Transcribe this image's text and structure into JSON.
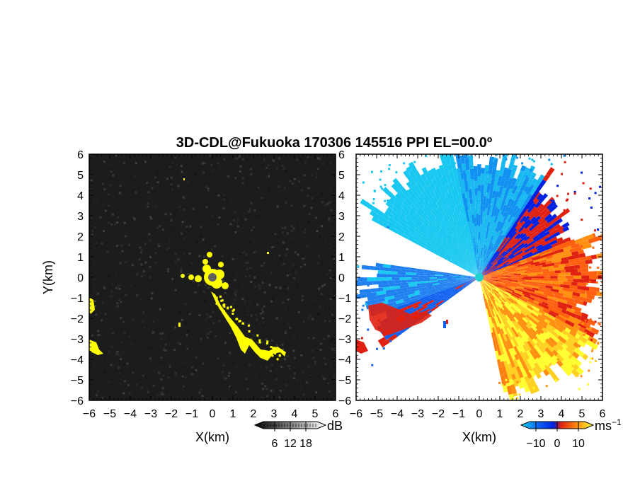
{
  "title": "3D-CDL@Fukuoka 170306 145516 PPI EL=00.0º",
  "chart_data": [
    {
      "type": "heatmap",
      "panel": "reflectivity",
      "xlabel": "X(km)",
      "ylabel": "Y(km)",
      "xlim": [
        -6,
        6
      ],
      "ylim": [
        -6,
        6
      ],
      "xticks": [
        "−6",
        "−5",
        "−4",
        "−3",
        "−2",
        "−1",
        "0",
        "1",
        "2",
        "3",
        "4",
        "5",
        "6"
      ],
      "yticks": [
        "6",
        "5",
        "4",
        "3",
        "2",
        "1",
        "0",
        "−1",
        "−2",
        "−3",
        "−4",
        "−5",
        "−6"
      ],
      "colorbar": {
        "label": "dB",
        "ticks": [
          "6",
          "12",
          "18"
        ],
        "range": [
          0,
          24
        ]
      },
      "colors": {
        "background": "#202020",
        "echo_high": "#ffffff",
        "highlight": "#ffff00"
      }
    },
    {
      "type": "heatmap",
      "panel": "doppler_velocity",
      "xlabel": "X(km)",
      "xlim": [
        -6,
        6
      ],
      "ylim": [
        -6,
        6
      ],
      "xticks": [
        "−6",
        "−5",
        "−4",
        "−3",
        "−2",
        "−1",
        "0",
        "1",
        "2",
        "3",
        "4",
        "5",
        "6"
      ],
      "yticks": [
        "6",
        "5",
        "4",
        "3",
        "2",
        "1",
        "0",
        "−1",
        "−2",
        "−3",
        "−4",
        "−5",
        "−6"
      ],
      "colorbar": {
        "label": "ms",
        "label_exponent": "−1",
        "ticks": [
          "−10",
          "0",
          "10"
        ],
        "range": [
          -15,
          15
        ]
      },
      "colors": {
        "negative_strong": "#0020e0",
        "negative_weak": "#10d0f0",
        "positive_strong": "#e02010",
        "positive_weak": "#ffff30",
        "background": "#ffffff"
      }
    }
  ]
}
